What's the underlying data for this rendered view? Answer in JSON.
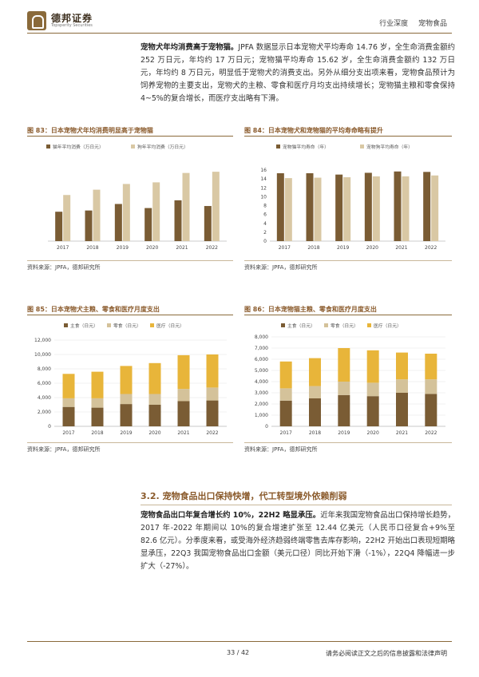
{
  "header": {
    "logo_cn": "德邦证券",
    "logo_en": "Topsperity Securities",
    "category": "行业深度",
    "topic": "宠物食品"
  },
  "para1": {
    "lead": "宠物犬年均消费高于宠物猫。",
    "body": "JPFA 数据显示日本宠物犬平均寿命 14.76 岁，全生命消费金额约 252 万日元，年均约 17 万日元；宠物猫平均寿命 15.62 岁，全生命消费金额约 132 万日元，年均约 8 万日元，明显低于宠物犬的消费支出。另外从细分支出项来看，宠物食品预计为饲养宠物的主要支出，宠物犬的主粮、零食和医疗月均支出持续增长；宠物猫主粮和零食保持 4~5%的复合增长，而医疗支出略有下滑。"
  },
  "figures": {
    "fig83": {
      "title": "图 83：日本宠物犬年均消费明显高于宠物猫",
      "source": "资料来源：JPFA，德邦研究所"
    },
    "fig84": {
      "title": "图 84：日本宠物犬和宠物猫的平均寿命略有提升",
      "source": "资料来源：JPFA，德邦研究所"
    },
    "fig85": {
      "title": "图 85：日本宠物犬主粮、零食和医疗月度支出",
      "source": "资料来源：JPFA，德邦研究所"
    },
    "fig86": {
      "title": "图 86：日本宠物猫主粮、零食和医疗月度支出",
      "source": "资料来源：JPFA，德邦研究所"
    }
  },
  "section": {
    "title": "3.2. 宠物食品出口保持快增，代工转型境外依赖削弱"
  },
  "para2": {
    "lead": "宠物食品出口年复合增长约 10%，22H2 略显承压。",
    "body": "近年来我国宠物食品出口保持增长趋势，2017 年-2022 年期间以 10%的复合增速扩张至 12.44 亿美元（人民币口径复合+9%至 82.6 亿元）。分季度来看，或受海外经济趋弱终端零售去库存影响，22H2 开始出口表现短期略显承压，22Q3 我国宠物食品出口金额（美元口径）同比开始下滑（-1%），22Q4 降幅进一步扩大（-27%）。"
  },
  "footer": {
    "page": "33 / 42",
    "disclaimer": "请务必阅读正文之后的信息披露和法律声明"
  },
  "colors": {
    "dark_brown": "#7a5c34",
    "light_tan": "#d9c8a4",
    "orange_gold": "#e8b53a",
    "tan": "#d4c29a"
  },
  "chart_data": [
    {
      "id": "fig83",
      "type": "bar",
      "categories": [
        "2017",
        "2018",
        "2019",
        "2020",
        "2021",
        "2022"
      ],
      "series": [
        {
          "name": "猫年平均消费（万日元）",
          "values": [
            7.2,
            7.5,
            9.1,
            8.1,
            10,
            8.6
          ],
          "color": "#7a5c34"
        },
        {
          "name": "狗年平均消费（万日元）",
          "values": [
            11.3,
            12.6,
            14.0,
            14.4,
            16.7,
            17.0
          ],
          "color": "#d9c8a4"
        }
      ],
      "ylim": [
        0,
        18
      ]
    },
    {
      "id": "fig84",
      "type": "bar",
      "categories": [
        "2017",
        "2018",
        "2019",
        "2020",
        "2021",
        "2022"
      ],
      "series": [
        {
          "name": "宠物猫平均寿命（年）",
          "values": [
            15.3,
            15.3,
            15.0,
            15.4,
            15.7,
            15.6
          ],
          "color": "#7a5c34"
        },
        {
          "name": "宠物狗平均寿命（年）",
          "values": [
            14.2,
            14.3,
            14.4,
            14.6,
            14.6,
            14.8
          ],
          "color": "#d9c8a4"
        }
      ],
      "ylim": [
        0,
        18
      ],
      "yticks": [
        0,
        2,
        4,
        6,
        8,
        10,
        12,
        14,
        16
      ]
    },
    {
      "id": "fig85",
      "type": "stacked-bar",
      "categories": [
        "2017",
        "2018",
        "2019",
        "2020",
        "2021",
        "2022"
      ],
      "series": [
        {
          "name": "主食（日元）",
          "values": [
            2700,
            2600,
            3100,
            3000,
            3500,
            3600
          ],
          "color": "#7a5c34"
        },
        {
          "name": "零食（日元）",
          "values": [
            1200,
            1300,
            1400,
            1500,
            1700,
            1800
          ],
          "color": "#d4c29a"
        },
        {
          "name": "医疗（日元）",
          "values": [
            3400,
            3700,
            3900,
            4300,
            4700,
            4600
          ],
          "color": "#e8b53a"
        }
      ],
      "ylim": [
        0,
        12000
      ],
      "yticks": [
        "0",
        "2,000",
        "4,000",
        "6,000",
        "8,000",
        "10,000",
        "12,000"
      ]
    },
    {
      "id": "fig86",
      "type": "stacked-bar",
      "categories": [
        "2017",
        "2018",
        "2019",
        "2020",
        "2021",
        "2022"
      ],
      "series": [
        {
          "name": "主食（日元）",
          "values": [
            2300,
            2500,
            2800,
            2700,
            3000,
            2900
          ],
          "color": "#7a5c34"
        },
        {
          "name": "零食（日元）",
          "values": [
            1100,
            1100,
            1200,
            1200,
            1200,
            1300
          ],
          "color": "#d4c29a"
        },
        {
          "name": "医疗（日元）",
          "values": [
            2400,
            2500,
            3000,
            2900,
            2400,
            2300
          ],
          "color": "#e8b53a"
        }
      ],
      "ylim": [
        0,
        8000
      ],
      "yticks": [
        "0",
        "1,000",
        "2,000",
        "3,000",
        "4,000",
        "5,000",
        "6,000",
        "7,000",
        "8,000"
      ]
    }
  ]
}
